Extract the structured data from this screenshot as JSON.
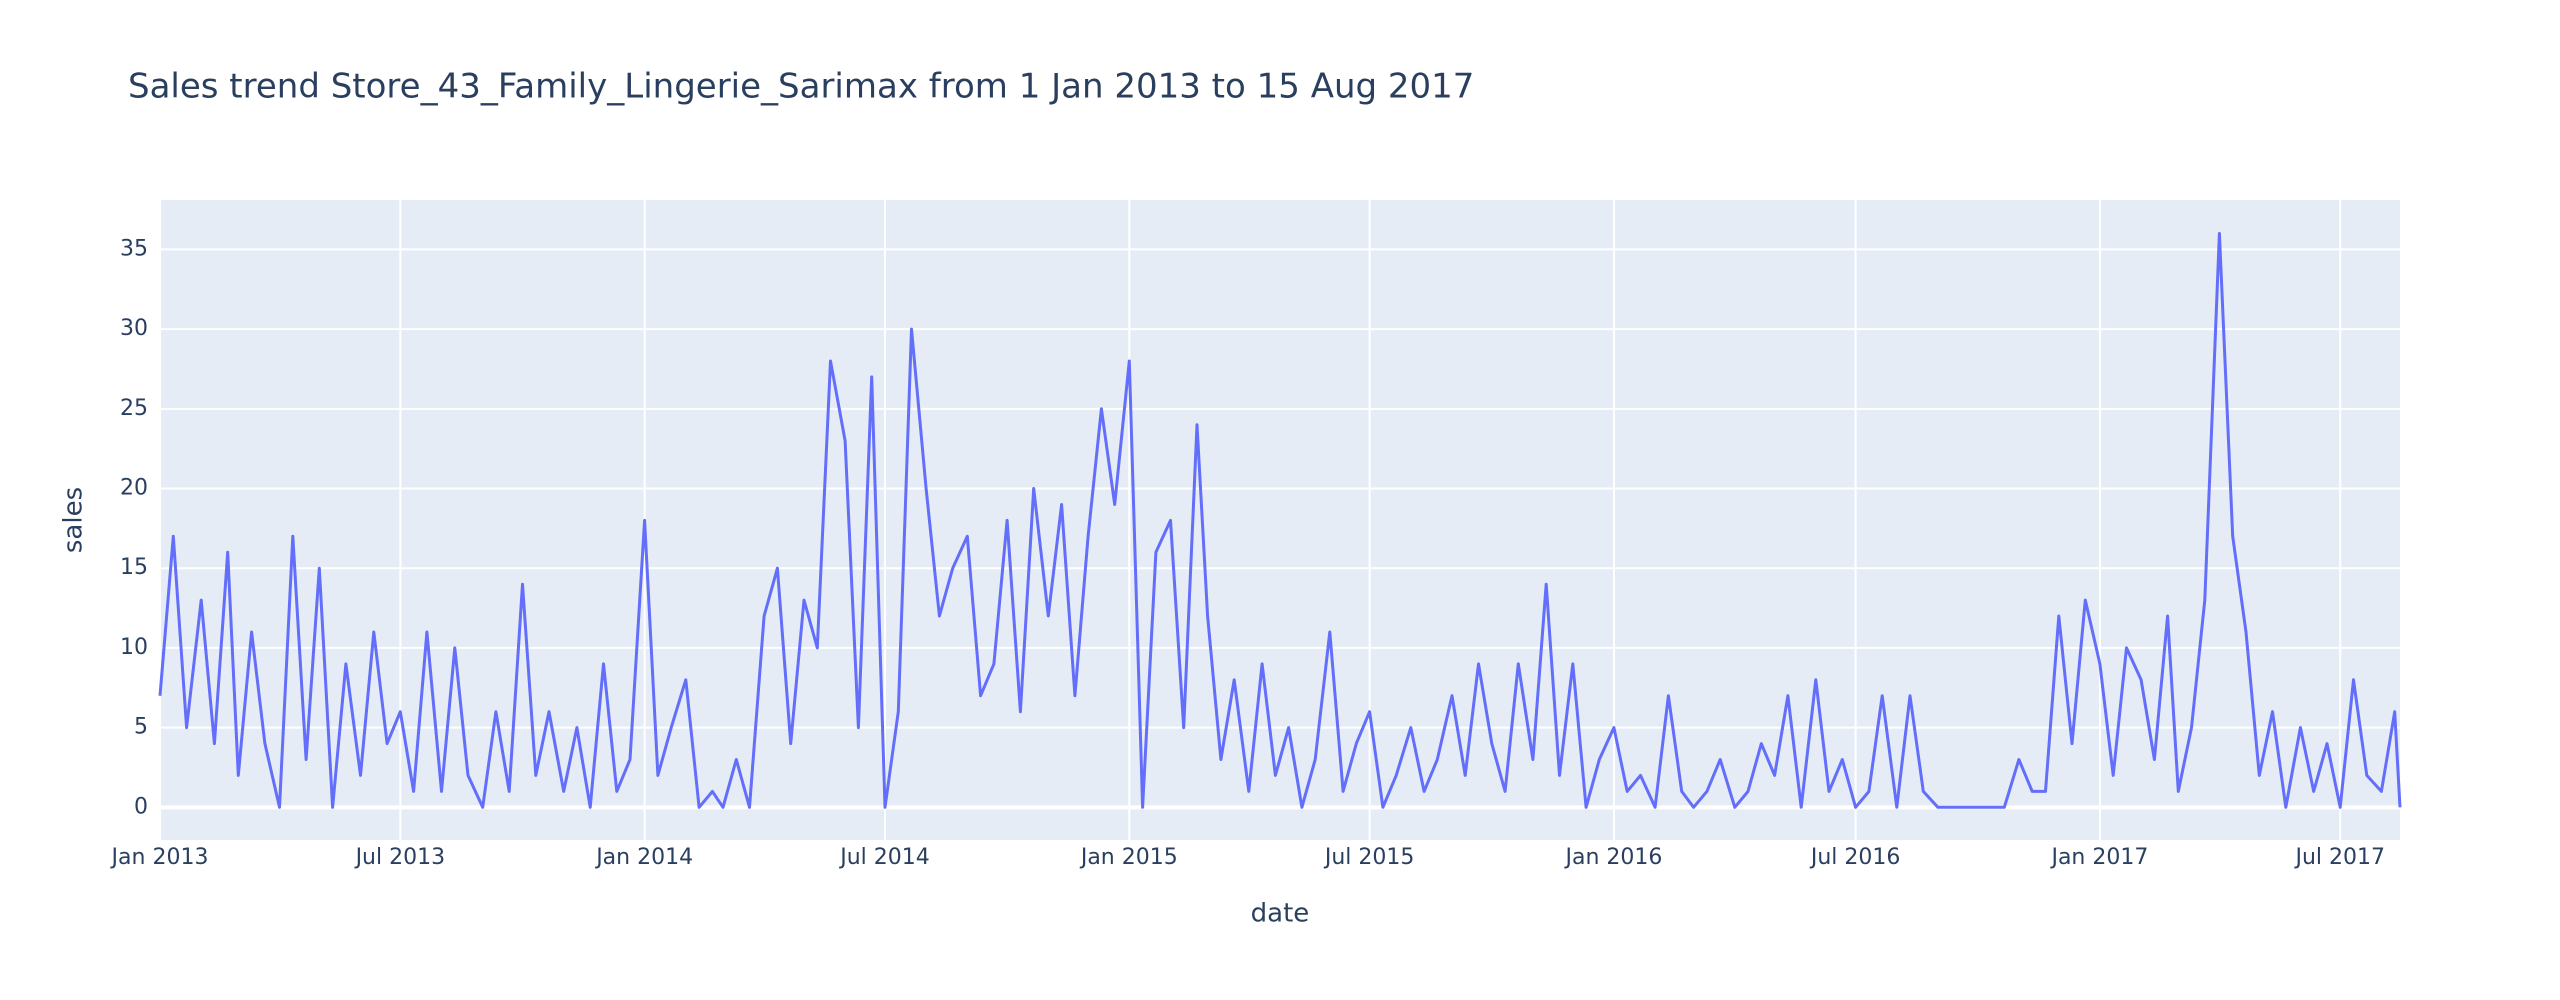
{
  "chart_data": {
    "type": "line",
    "title": "Sales trend Store_43_Family_Lingerie_Sarimax from  1 Jan 2013 to 15 Aug 2017",
    "x_label": "date",
    "y_label": "sales",
    "x": [
      "2013-01-01",
      "2013-01-11",
      "2013-01-21",
      "2013-02-01",
      "2013-02-11",
      "2013-02-21",
      "2013-03-01",
      "2013-03-11",
      "2013-03-21",
      "2013-04-01",
      "2013-04-11",
      "2013-04-21",
      "2013-05-01",
      "2013-05-11",
      "2013-05-21",
      "2013-06-01",
      "2013-06-11",
      "2013-06-21",
      "2013-07-01",
      "2013-07-11",
      "2013-07-21",
      "2013-08-01",
      "2013-08-11",
      "2013-08-21",
      "2013-09-01",
      "2013-09-11",
      "2013-09-21",
      "2013-10-01",
      "2013-10-11",
      "2013-10-21",
      "2013-11-01",
      "2013-11-11",
      "2013-11-21",
      "2013-12-01",
      "2013-12-11",
      "2013-12-21",
      "2014-01-01",
      "2014-01-11",
      "2014-01-21",
      "2014-02-01",
      "2014-02-11",
      "2014-02-21",
      "2014-03-01",
      "2014-03-11",
      "2014-03-21",
      "2014-04-01",
      "2014-04-11",
      "2014-04-21",
      "2014-05-01",
      "2014-05-11",
      "2014-05-21",
      "2014-06-01",
      "2014-06-11",
      "2014-06-21",
      "2014-07-01",
      "2014-07-11",
      "2014-07-21",
      "2014-08-01",
      "2014-08-11",
      "2014-08-21",
      "2014-09-01",
      "2014-09-11",
      "2014-09-21",
      "2014-10-01",
      "2014-10-11",
      "2014-10-21",
      "2014-11-01",
      "2014-11-11",
      "2014-11-21",
      "2014-12-01",
      "2014-12-11",
      "2014-12-21",
      "2015-01-01",
      "2015-01-11",
      "2015-01-21",
      "2015-02-01",
      "2015-02-11",
      "2015-02-21",
      "2015-03-01",
      "2015-03-11",
      "2015-03-21",
      "2015-04-01",
      "2015-04-11",
      "2015-04-21",
      "2015-05-01",
      "2015-05-11",
      "2015-05-21",
      "2015-06-01",
      "2015-06-11",
      "2015-06-21",
      "2015-07-01",
      "2015-07-11",
      "2015-07-21",
      "2015-08-01",
      "2015-08-11",
      "2015-08-21",
      "2015-09-01",
      "2015-09-11",
      "2015-09-21",
      "2015-10-01",
      "2015-10-11",
      "2015-10-21",
      "2015-11-01",
      "2015-11-11",
      "2015-11-21",
      "2015-12-01",
      "2015-12-11",
      "2015-12-21",
      "2016-01-01",
      "2016-01-11",
      "2016-01-21",
      "2016-02-01",
      "2016-02-11",
      "2016-02-21",
      "2016-03-01",
      "2016-03-11",
      "2016-03-21",
      "2016-04-01",
      "2016-04-11",
      "2016-04-21",
      "2016-05-01",
      "2016-05-11",
      "2016-05-21",
      "2016-06-01",
      "2016-06-11",
      "2016-06-21",
      "2016-07-01",
      "2016-07-11",
      "2016-07-21",
      "2016-08-01",
      "2016-08-11",
      "2016-08-21",
      "2016-09-01",
      "2016-09-11",
      "2016-09-21",
      "2016-10-01",
      "2016-10-11",
      "2016-10-21",
      "2016-11-01",
      "2016-11-11",
      "2016-11-21",
      "2016-12-01",
      "2016-12-11",
      "2016-12-21",
      "2017-01-01",
      "2017-01-11",
      "2017-01-21",
      "2017-02-01",
      "2017-02-11",
      "2017-02-21",
      "2017-03-01",
      "2017-03-11",
      "2017-03-21",
      "2017-04-01",
      "2017-04-11",
      "2017-04-21",
      "2017-05-01",
      "2017-05-11",
      "2017-05-21",
      "2017-06-01",
      "2017-06-11",
      "2017-06-21",
      "2017-07-01",
      "2017-07-11",
      "2017-07-21",
      "2017-08-01",
      "2017-08-11",
      "2017-08-15"
    ],
    "series": [
      {
        "name": "sales",
        "color": "#636efa",
        "values": [
          7,
          17,
          5,
          13,
          4,
          16,
          2,
          11,
          4,
          0,
          17,
          3,
          15,
          0,
          9,
          2,
          11,
          4,
          6,
          1,
          11,
          1,
          10,
          2,
          0,
          6,
          1,
          14,
          2,
          6,
          1,
          5,
          0,
          9,
          1,
          3,
          18,
          2,
          5,
          8,
          0,
          1,
          0,
          3,
          0,
          12,
          15,
          4,
          13,
          10,
          28,
          23,
          5,
          27,
          0,
          6,
          30,
          20,
          12,
          15,
          17,
          7,
          9,
          18,
          6,
          20,
          12,
          19,
          7,
          17,
          25,
          19,
          28,
          0,
          16,
          18,
          5,
          24,
          12,
          3,
          8,
          1,
          9,
          2,
          5,
          0,
          3,
          11,
          1,
          4,
          6,
          0,
          2,
          5,
          1,
          3,
          7,
          2,
          9,
          4,
          1,
          9,
          3,
          14,
          2,
          9,
          0,
          3,
          5,
          1,
          2,
          0,
          7,
          1,
          0,
          1,
          3,
          0,
          1,
          4,
          2,
          7,
          0,
          8,
          1,
          3,
          0,
          1,
          7,
          0,
          7,
          1,
          0,
          0,
          0,
          0,
          0,
          0,
          3,
          1,
          1,
          12,
          4,
          13,
          9,
          2,
          10,
          8,
          3,
          12,
          1,
          5,
          13,
          36,
          17,
          11,
          2,
          6,
          0,
          5,
          1,
          4,
          0,
          8,
          2,
          1,
          6,
          0
        ]
      }
    ],
    "xlim": [
      "2013-01-01",
      "2017-08-15"
    ],
    "xticks": [
      {
        "value": "2013-01-01",
        "label": "Jan 2013"
      },
      {
        "value": "2013-07-01",
        "label": "Jul 2013"
      },
      {
        "value": "2014-01-01",
        "label": "Jan 2014"
      },
      {
        "value": "2014-07-01",
        "label": "Jul 2014"
      },
      {
        "value": "2015-01-01",
        "label": "Jan 2015"
      },
      {
        "value": "2015-07-01",
        "label": "Jul 2015"
      },
      {
        "value": "2016-01-01",
        "label": "Jan 2016"
      },
      {
        "value": "2016-07-01",
        "label": "Jul 2016"
      },
      {
        "value": "2017-01-01",
        "label": "Jan 2017"
      },
      {
        "value": "2017-07-01",
        "label": "Jul 2017"
      }
    ],
    "ylim": [
      -2.05,
      38.1
    ],
    "yticks": [
      0,
      5,
      10,
      15,
      20,
      25,
      30,
      35
    ],
    "grid": true
  }
}
